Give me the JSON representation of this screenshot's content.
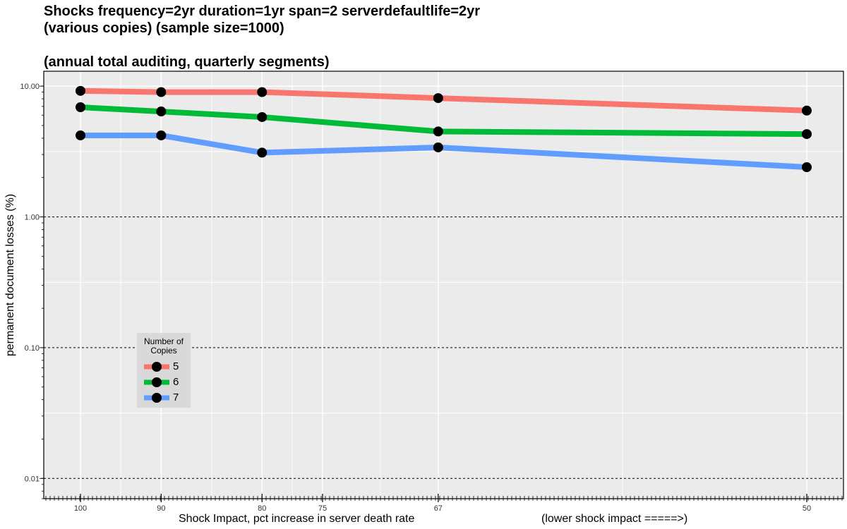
{
  "chart_data": {
    "type": "line",
    "title_lines": [
      "Shocks frequency=2yr duration=1yr span=2 serverdefaultlife=2yr",
      "(various copies) (sample size=1000)",
      "",
      "(annual total auditing, quarterly segments)"
    ],
    "xlabel": "Shock Impact, pct increase in server death rate",
    "xlabel_note": "(lower shock impact =====>)",
    "ylabel": "permanent document losses (%)",
    "y_scale": "log10",
    "ylim": [
      0.007,
      13
    ],
    "y_ticks": [
      {
        "value": 10,
        "label": "10.00"
      },
      {
        "value": 1,
        "label": "1.00"
      },
      {
        "value": 0.1,
        "label": "0.10"
      },
      {
        "value": 0.01,
        "label": "0.01"
      }
    ],
    "x_scale": "reciprocal",
    "x_ticks": [
      100,
      90,
      80,
      75,
      67,
      50
    ],
    "legend": {
      "title_lines": [
        "Number of",
        "Copies"
      ],
      "position": "bottom-left"
    },
    "grid": true,
    "series": [
      {
        "name": "5",
        "color": "#F8766D",
        "x": [
          100,
          90,
          80,
          67,
          50
        ],
        "y": [
          9.2,
          9.0,
          9.0,
          8.1,
          6.5
        ]
      },
      {
        "name": "6",
        "color": "#00BA38",
        "x": [
          100,
          90,
          80,
          67,
          50
        ],
        "y": [
          6.9,
          6.4,
          5.8,
          4.5,
          4.3
        ]
      },
      {
        "name": "7",
        "color": "#619CFF",
        "x": [
          100,
          90,
          80,
          67,
          50
        ],
        "y": [
          4.2,
          4.2,
          3.1,
          3.4,
          2.4
        ]
      }
    ]
  }
}
